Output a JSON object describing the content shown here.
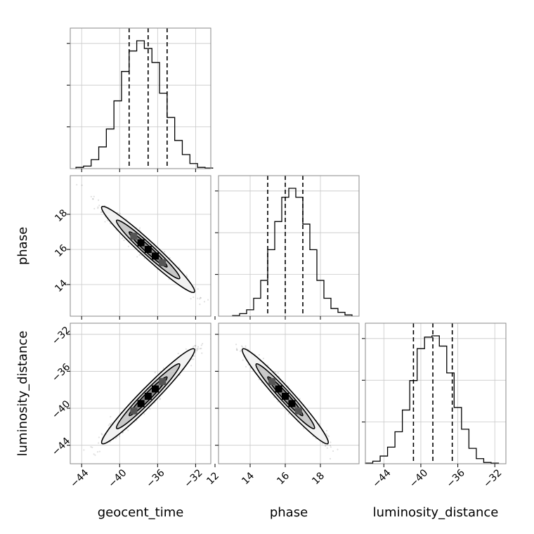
{
  "chart_data": {
    "type": "corner",
    "parameters": [
      "geocent_time",
      "phase",
      "luminosity_distance"
    ],
    "axis_labels": {
      "geocent_time": "geocent_time",
      "phase": "phase",
      "luminosity_distance": "luminosity_distance"
    },
    "ranges": {
      "geocent_time": [
        -45.2,
        -30.4
      ],
      "phase": [
        12.2,
        20.2
      ],
      "luminosity_distance": [
        -46.0,
        -30.8
      ]
    },
    "ticks": {
      "geocent_time": [
        -44,
        -40,
        -36,
        -32
      ],
      "phase": [
        12,
        14,
        16,
        18
      ],
      "luminosity_distance": [
        -44,
        -40,
        -36,
        -32
      ]
    },
    "tick_labels": {
      "geocent_time": [
        "−44",
        "−40",
        "−36",
        "−32"
      ],
      "phase": [
        "12",
        "14",
        "16",
        "18"
      ],
      "luminosity_distance": [
        "−44",
        "−40",
        "−36",
        "−32"
      ]
    },
    "quantiles": {
      "geocent_time": [
        -39.0,
        -37.0,
        -35.0
      ],
      "phase": [
        15.0,
        16.0,
        17.0
      ],
      "luminosity_distance": [
        -40.8,
        -38.7,
        -36.6
      ]
    },
    "histograms": {
      "geocent_time": {
        "bin_edges": [
          -44.6,
          -43.8,
          -43.0,
          -42.2,
          -41.4,
          -40.6,
          -39.8,
          -39.0,
          -38.2,
          -37.4,
          -36.6,
          -35.8,
          -35.0,
          -34.2,
          -33.4,
          -32.6,
          -31.8,
          -31.0,
          -30.2
        ],
        "counts": [
          0.01,
          0.02,
          0.07,
          0.17,
          0.31,
          0.53,
          0.76,
          0.92,
          1.0,
          0.94,
          0.83,
          0.59,
          0.4,
          0.22,
          0.11,
          0.04,
          0.01,
          0.005
        ]
      },
      "phase": {
        "bin_edges": [
          13.0,
          13.4,
          13.8,
          14.2,
          14.6,
          15.0,
          15.4,
          15.8,
          16.2,
          16.6,
          17.0,
          17.4,
          17.8,
          18.2,
          18.6,
          19.0,
          19.4,
          19.8
        ],
        "counts": [
          0.005,
          0.02,
          0.05,
          0.14,
          0.28,
          0.52,
          0.74,
          0.93,
          1.0,
          0.93,
          0.72,
          0.52,
          0.28,
          0.14,
          0.06,
          0.03,
          0.01
        ]
      },
      "luminosity_distance": {
        "bin_edges": [
          -46.0,
          -45.2,
          -44.4,
          -43.6,
          -42.8,
          -42.0,
          -41.2,
          -40.4,
          -39.6,
          -38.8,
          -38.0,
          -37.2,
          -36.4,
          -35.6,
          -34.8,
          -34.0,
          -33.2,
          -32.4,
          -31.6
        ],
        "counts": [
          0.005,
          0.02,
          0.06,
          0.13,
          0.25,
          0.42,
          0.65,
          0.9,
          0.99,
          1.0,
          0.92,
          0.71,
          0.44,
          0.27,
          0.12,
          0.04,
          0.01,
          0.005
        ]
      }
    },
    "grid": true,
    "correlations": {
      "phase_vs_geocent_time": -1,
      "luminosity_distance_vs_geocent_time": 1,
      "luminosity_distance_vs_phase": -1
    }
  }
}
